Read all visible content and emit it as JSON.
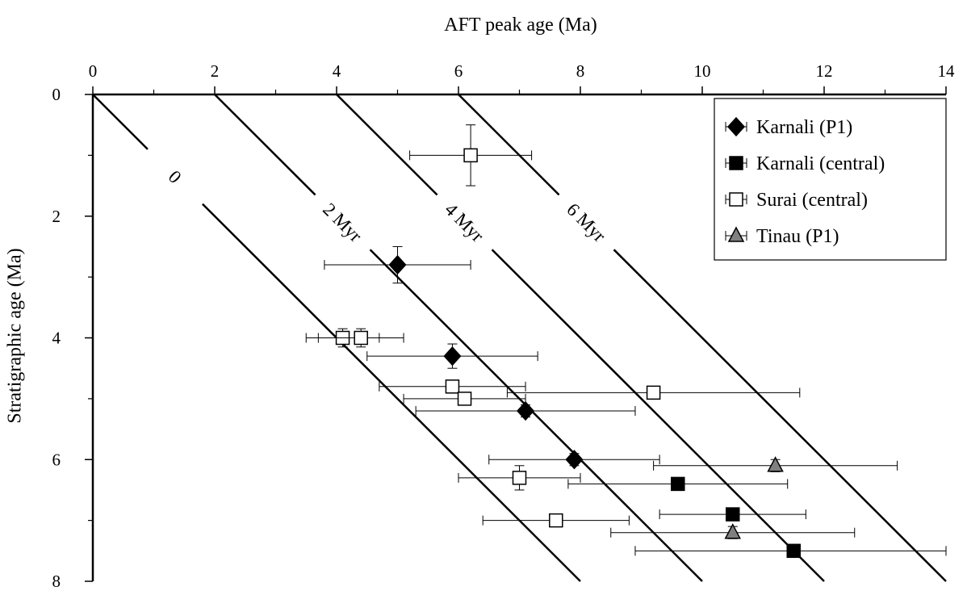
{
  "chart_data": {
    "type": "scatter",
    "title": "",
    "xlabel": "AFT peak age (Ma)",
    "ylabel": "Stratigraphic age (Ma)",
    "xlim": [
      0,
      14
    ],
    "ylim": [
      0,
      8
    ],
    "y_inverted": true,
    "x_axis_position": "top",
    "x_ticks": [
      0,
      2,
      4,
      6,
      8,
      10,
      12,
      14
    ],
    "y_ticks": [
      0,
      2,
      4,
      6,
      8
    ],
    "grid": false,
    "legend_position": "top-right",
    "lag_lines": [
      {
        "label": "0",
        "lag": 0
      },
      {
        "label": "2 Myr",
        "lag": 2
      },
      {
        "label": "4 Myr",
        "lag": 4
      },
      {
        "label": "6 Myr",
        "lag": 6
      }
    ],
    "series": [
      {
        "name": "Karnali (P1)",
        "marker": "diamond",
        "fill": "#000000",
        "points": [
          {
            "x": 5.0,
            "y": 2.8,
            "xerr": [
              3.8,
              6.2
            ],
            "yerr": [
              2.5,
              3.1
            ]
          },
          {
            "x": 5.9,
            "y": 4.3,
            "xerr": [
              4.5,
              7.3
            ],
            "yerr": [
              4.1,
              4.5
            ]
          },
          {
            "x": 7.1,
            "y": 5.2,
            "xerr": [
              5.3,
              8.9
            ],
            "yerr": [
              5.1,
              5.3
            ]
          },
          {
            "x": 7.9,
            "y": 6.0,
            "xerr": [
              6.5,
              9.3
            ],
            "yerr": [
              5.9,
              6.1
            ]
          }
        ]
      },
      {
        "name": "Karnali (central)",
        "marker": "square",
        "fill": "#000000",
        "points": [
          {
            "x": 9.6,
            "y": 6.4,
            "xerr": [
              7.8,
              11.4
            ],
            "yerr": [
              6.3,
              6.5
            ]
          },
          {
            "x": 10.5,
            "y": 6.9,
            "xerr": [
              9.3,
              11.7
            ],
            "yerr": [
              6.8,
              7.0
            ]
          },
          {
            "x": 11.5,
            "y": 7.5,
            "xerr": [
              8.9,
              14.0
            ],
            "yerr": [
              7.4,
              7.6
            ]
          }
        ]
      },
      {
        "name": "Surai (central)",
        "marker": "square",
        "fill": "#ffffff",
        "points": [
          {
            "x": 6.2,
            "y": 1.0,
            "xerr": [
              5.2,
              7.2
            ],
            "yerr": [
              0.5,
              1.5
            ]
          },
          {
            "x": 4.1,
            "y": 4.0,
            "xerr": [
              3.5,
              4.7
            ],
            "yerr": [
              3.85,
              4.15
            ]
          },
          {
            "x": 4.4,
            "y": 4.0,
            "xerr": [
              3.7,
              5.1
            ],
            "yerr": [
              3.85,
              4.15
            ]
          },
          {
            "x": 5.9,
            "y": 4.8,
            "xerr": [
              4.7,
              7.1
            ],
            "yerr": [
              4.7,
              4.9
            ]
          },
          {
            "x": 6.1,
            "y": 5.0,
            "xerr": [
              5.1,
              7.1
            ],
            "yerr": [
              4.9,
              5.1
            ]
          },
          {
            "x": 9.2,
            "y": 4.9,
            "xerr": [
              6.8,
              11.6
            ],
            "yerr": [
              4.8,
              5.0
            ]
          },
          {
            "x": 7.0,
            "y": 6.3,
            "xerr": [
              6.0,
              8.0
            ],
            "yerr": [
              6.1,
              6.5
            ]
          },
          {
            "x": 7.6,
            "y": 7.0,
            "xerr": [
              6.4,
              8.8
            ],
            "yerr": [
              6.9,
              7.1
            ]
          }
        ]
      },
      {
        "name": "Tinau  (P1)",
        "marker": "triangle",
        "fill": "#808080",
        "points": [
          {
            "x": 11.2,
            "y": 6.1,
            "xerr": [
              9.2,
              13.2
            ],
            "yerr": [
              6.0,
              6.2
            ]
          },
          {
            "x": 10.5,
            "y": 7.2,
            "xerr": [
              8.5,
              12.5
            ],
            "yerr": [
              7.1,
              7.3
            ]
          }
        ]
      }
    ]
  }
}
